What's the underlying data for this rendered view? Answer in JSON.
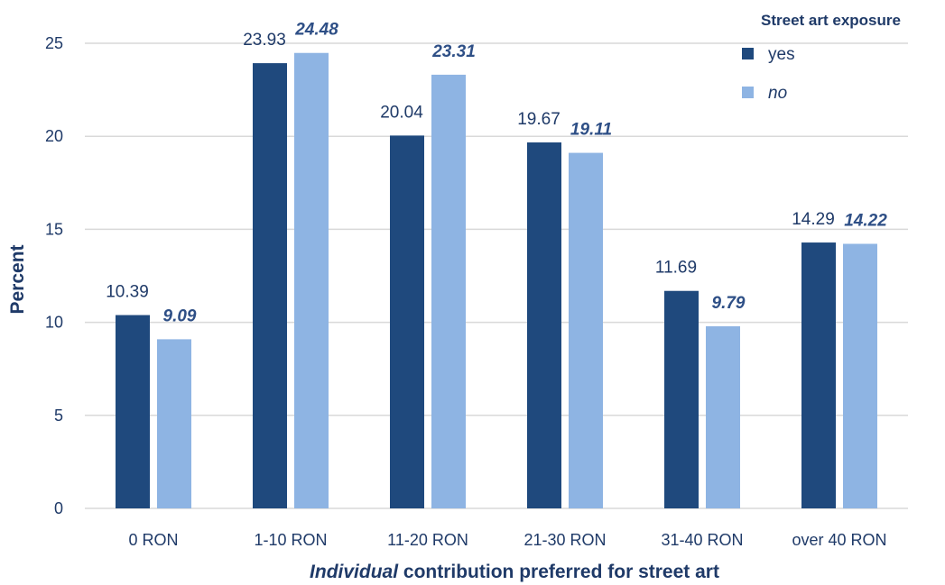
{
  "chart_data": {
    "type": "bar",
    "categories": [
      "0 RON",
      "1-10 RON",
      "11-20 RON",
      "21-30 RON",
      "31-40 RON",
      "over 40 RON"
    ],
    "series": [
      {
        "name": "yes",
        "values": [
          10.39,
          23.93,
          20.04,
          19.67,
          11.69,
          14.29
        ],
        "color": "#1f497d",
        "label_style": "normal"
      },
      {
        "name": "no",
        "values": [
          9.09,
          24.48,
          23.31,
          19.11,
          9.79,
          14.22
        ],
        "color": "#8eb4e3",
        "label_style": "italic"
      }
    ],
    "ylabel": "Percent",
    "xlabel_italic": "Individual",
    "xlabel_rest": " contribution preferred for street art",
    "ylim": [
      0,
      25
    ],
    "yticks": [
      0,
      5,
      10,
      15,
      20,
      25
    ],
    "grid": true,
    "legend_title": "Street art exposure",
    "legend_position": "top-right"
  }
}
